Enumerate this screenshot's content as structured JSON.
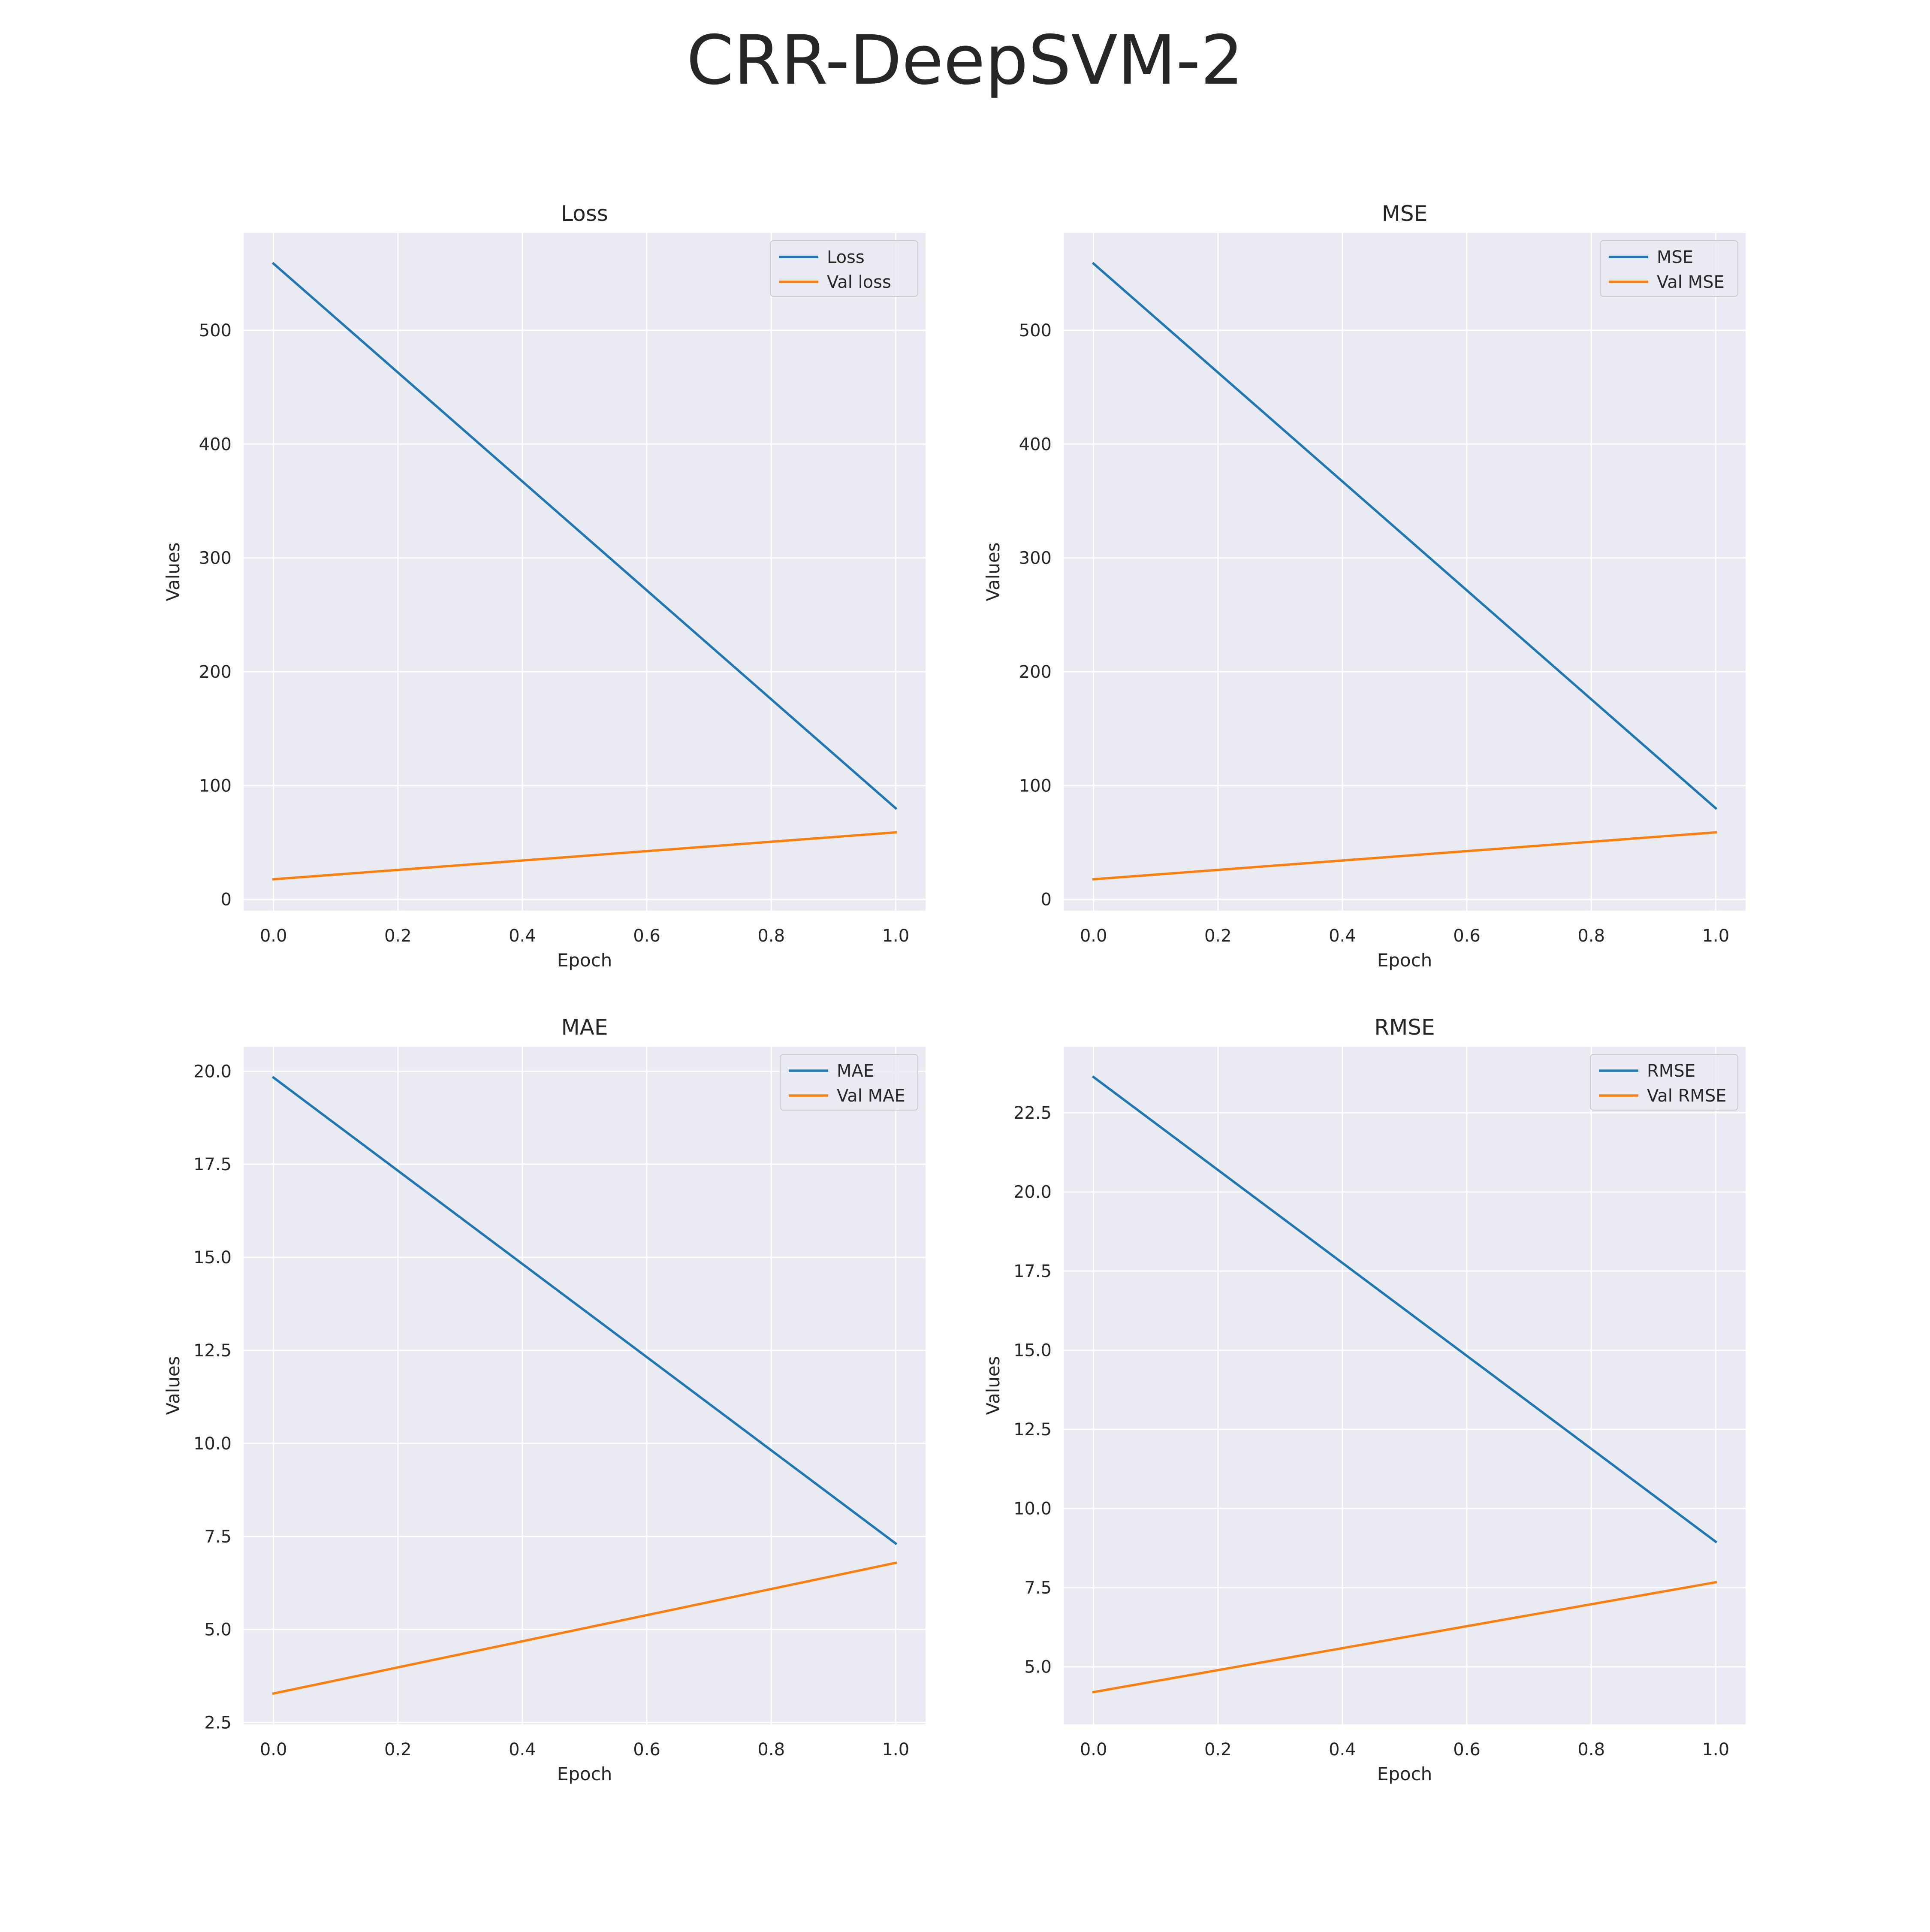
{
  "suptitle": "CRR-DeepSVM-2",
  "style": {
    "plot_bg": "#EAEAF2",
    "grid": "#FFFFFF",
    "train_color": "#1F77B4",
    "val_color": "#FF7F0E",
    "text_color": "#262626"
  },
  "chart_data": [
    {
      "type": "line",
      "title": "Loss",
      "xlabel": "Epoch",
      "ylabel": "Values",
      "x": [
        0.0,
        1.0
      ],
      "xlim": [
        -0.048,
        1.048
      ],
      "xticks": [
        0.0,
        0.2,
        0.4,
        0.6,
        0.8,
        1.0
      ],
      "xtick_labels": [
        "0.0",
        "0.2",
        "0.4",
        "0.6",
        "0.8",
        "1.0"
      ],
      "ylim": [
        -9.9,
        585.5
      ],
      "yticks": [
        0,
        100,
        200,
        300,
        400,
        500
      ],
      "ytick_labels": [
        "0",
        "100",
        "200",
        "300",
        "400",
        "500"
      ],
      "grid": true,
      "legend_position": "top-right",
      "series": [
        {
          "name": "Loss",
          "values": [
            558.6,
            80.1
          ],
          "color": "#1F77B4"
        },
        {
          "name": "Val loss",
          "values": [
            17.7,
            58.9
          ],
          "color": "#FF7F0E"
        }
      ]
    },
    {
      "type": "line",
      "title": "MSE",
      "xlabel": "Epoch",
      "ylabel": "Values",
      "x": [
        0.0,
        1.0
      ],
      "xlim": [
        -0.048,
        1.048
      ],
      "xticks": [
        0.0,
        0.2,
        0.4,
        0.6,
        0.8,
        1.0
      ],
      "xtick_labels": [
        "0.0",
        "0.2",
        "0.4",
        "0.6",
        "0.8",
        "1.0"
      ],
      "ylim": [
        -9.9,
        585.5
      ],
      "yticks": [
        0,
        100,
        200,
        300,
        400,
        500
      ],
      "ytick_labels": [
        "0",
        "100",
        "200",
        "300",
        "400",
        "500"
      ],
      "grid": true,
      "legend_position": "top-right",
      "series": [
        {
          "name": "MSE",
          "values": [
            558.6,
            80.1
          ],
          "color": "#1F77B4"
        },
        {
          "name": "Val MSE",
          "values": [
            17.7,
            58.9
          ],
          "color": "#FF7F0E"
        }
      ]
    },
    {
      "type": "line",
      "title": "MAE",
      "xlabel": "Epoch",
      "ylabel": "Values",
      "x": [
        0.0,
        1.0
      ],
      "xlim": [
        -0.048,
        1.048
      ],
      "xticks": [
        0.0,
        0.2,
        0.4,
        0.6,
        0.8,
        1.0
      ],
      "xtick_labels": [
        "0.0",
        "0.2",
        "0.4",
        "0.6",
        "0.8",
        "1.0"
      ],
      "ylim": [
        2.45,
        20.66
      ],
      "yticks": [
        2.5,
        5.0,
        7.5,
        10.0,
        12.5,
        15.0,
        17.5,
        20.0
      ],
      "ytick_labels": [
        "2.5",
        "5.0",
        "7.5",
        "10.0",
        "12.5",
        "15.0",
        "17.5",
        "20.0"
      ],
      "grid": true,
      "legend_position": "top-right",
      "series": [
        {
          "name": "MAE",
          "values": [
            19.83,
            7.31
          ],
          "color": "#1F77B4"
        },
        {
          "name": "Val MAE",
          "values": [
            3.28,
            6.79
          ],
          "color": "#FF7F0E"
        }
      ]
    },
    {
      "type": "line",
      "title": "RMSE",
      "xlabel": "Epoch",
      "ylabel": "Values",
      "x": [
        0.0,
        1.0
      ],
      "xlim": [
        -0.048,
        1.048
      ],
      "xticks": [
        0.0,
        0.2,
        0.4,
        0.6,
        0.8,
        1.0
      ],
      "xtick_labels": [
        "0.0",
        "0.2",
        "0.4",
        "0.6",
        "0.8",
        "1.0"
      ],
      "ylim": [
        3.18,
        24.59
      ],
      "yticks": [
        5.0,
        7.5,
        10.0,
        12.5,
        15.0,
        17.5,
        20.0,
        22.5
      ],
      "ytick_labels": [
        "5.0",
        "7.5",
        "10.0",
        "12.5",
        "15.0",
        "17.5",
        "20.0",
        "22.5"
      ],
      "grid": true,
      "legend_position": "top-right",
      "series": [
        {
          "name": "RMSE",
          "values": [
            23.63,
            8.95
          ],
          "color": "#1F77B4"
        },
        {
          "name": "Val RMSE",
          "values": [
            4.2,
            7.67
          ],
          "color": "#FF7F0E"
        }
      ]
    }
  ]
}
